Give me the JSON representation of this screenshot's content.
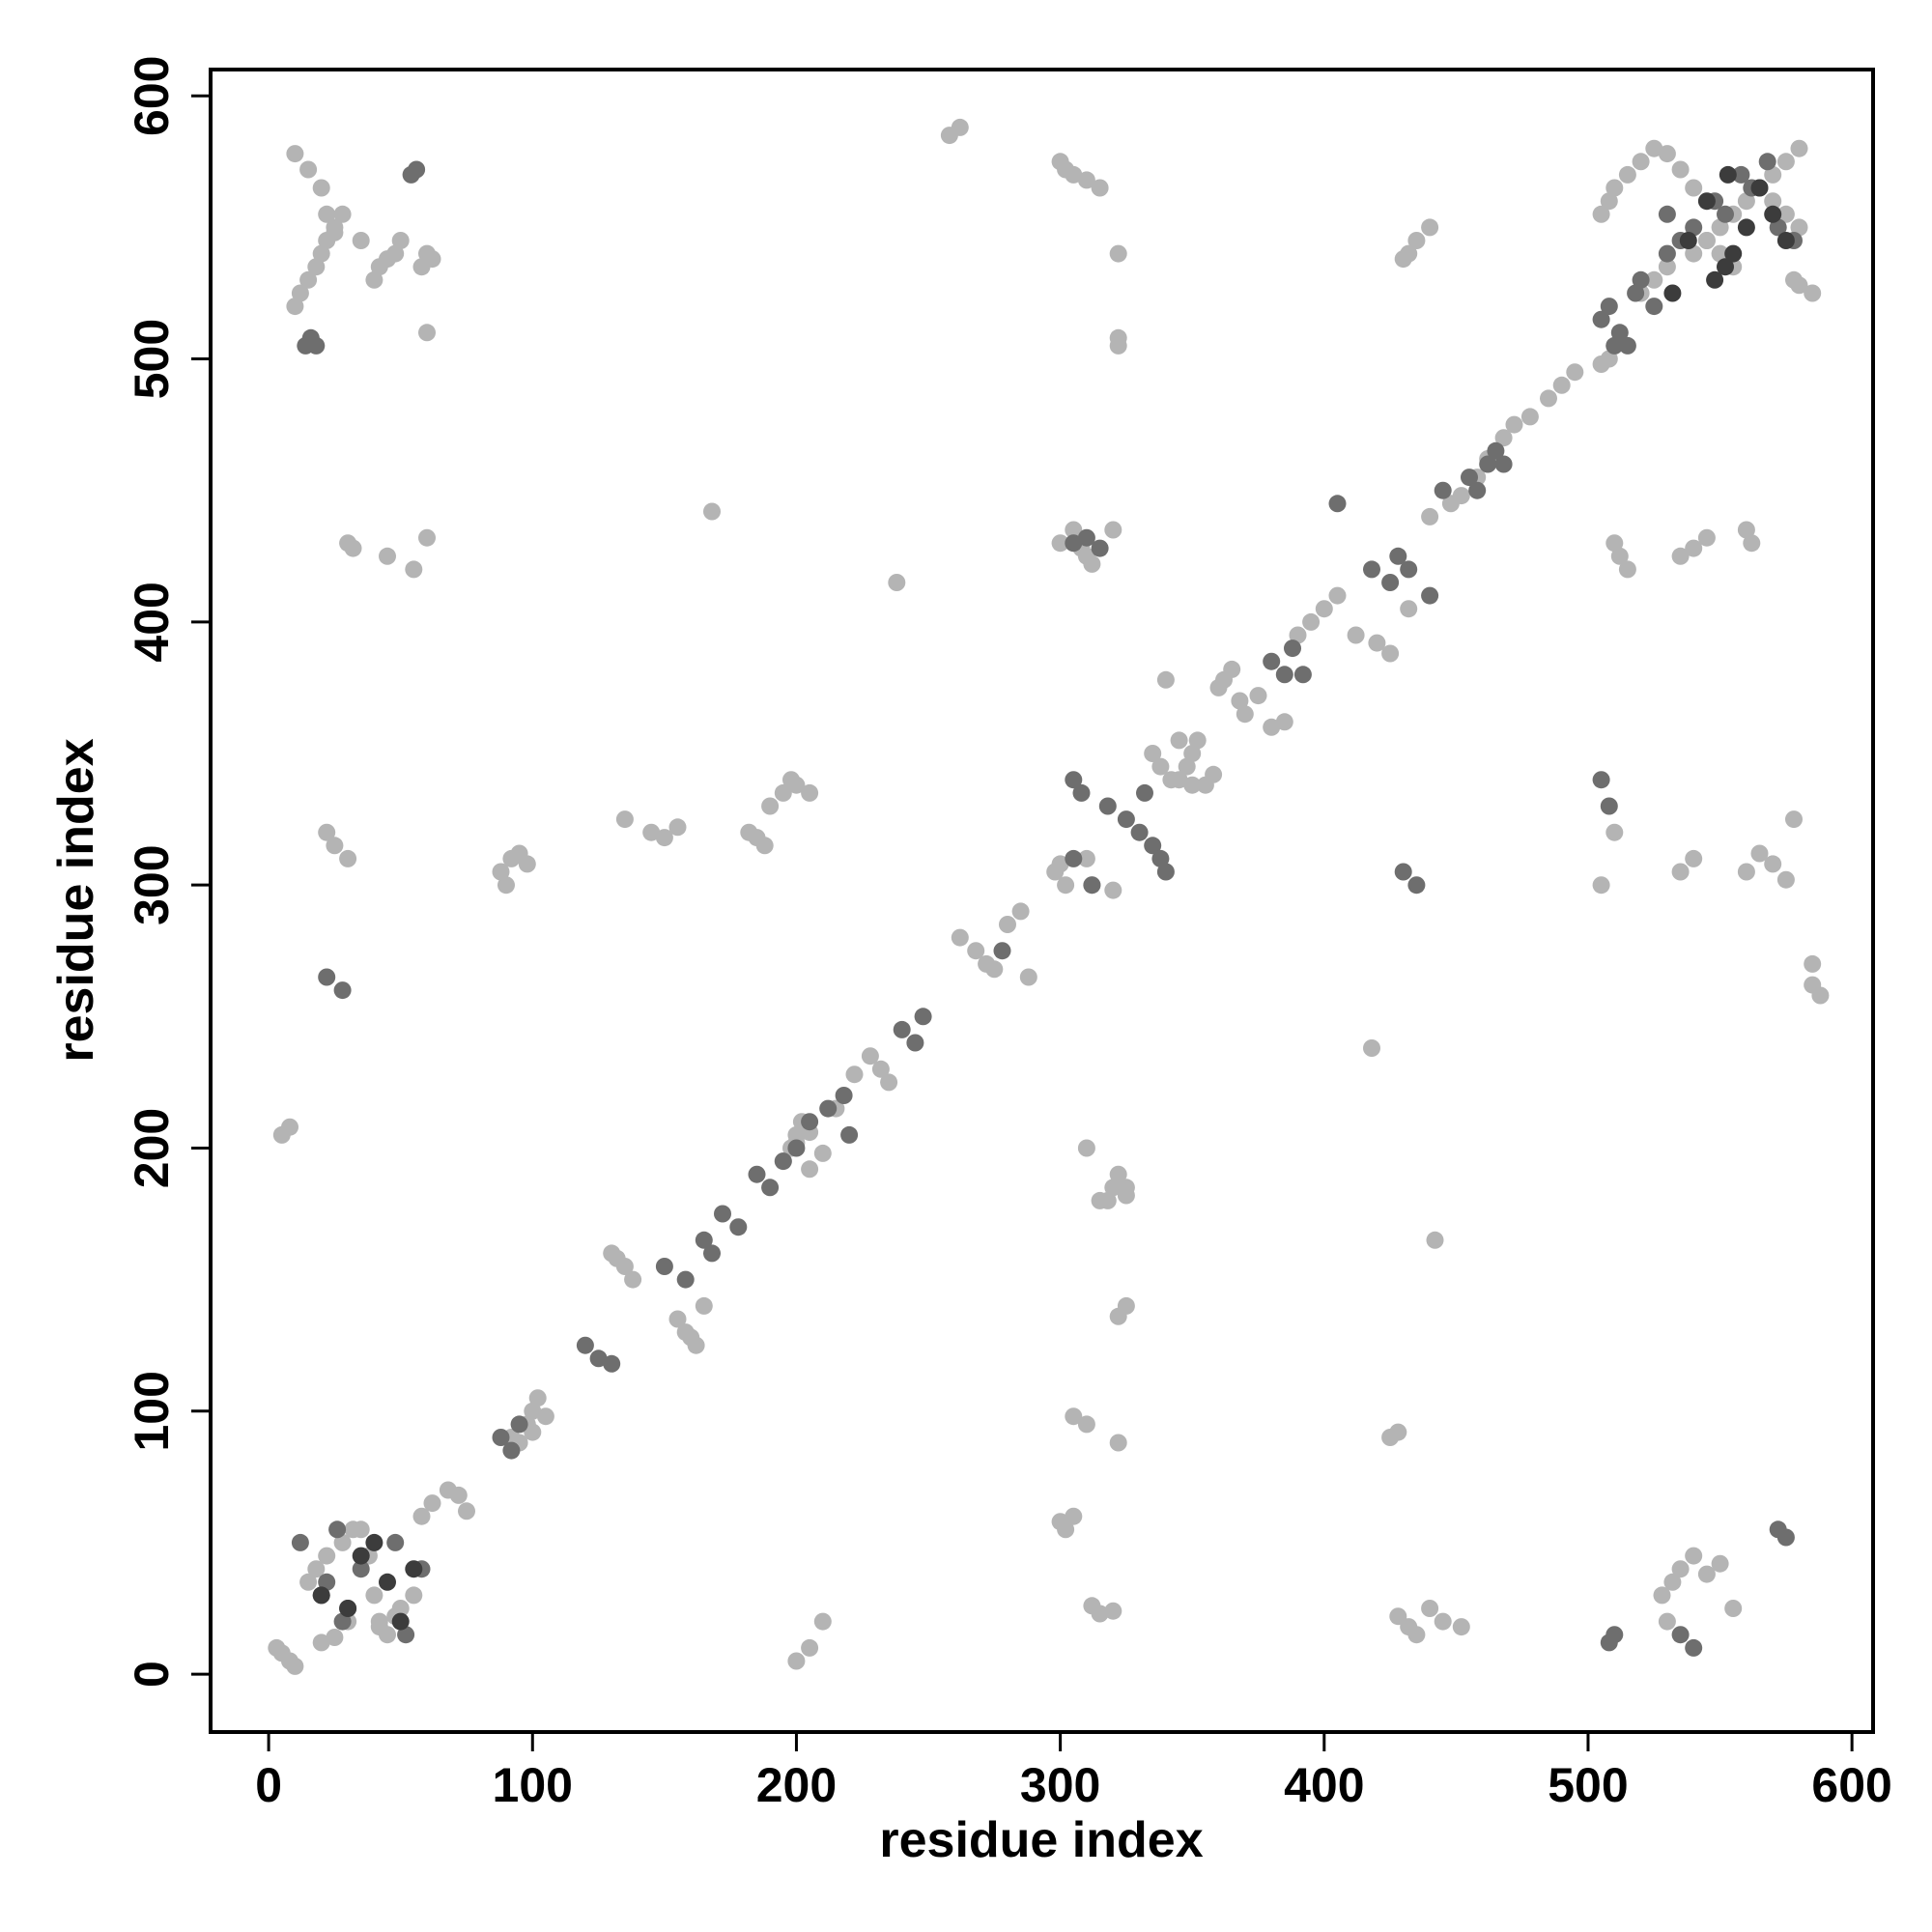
{
  "chart_data": {
    "type": "scatter",
    "title": "",
    "xlabel": "residue index",
    "ylabel": "residue index",
    "xlim": [
      -22,
      608
    ],
    "ylim": [
      -22,
      610
    ],
    "xticks": [
      0,
      100,
      200,
      300,
      400,
      500,
      600
    ],
    "yticks": [
      0,
      100,
      200,
      300,
      400,
      500,
      600
    ],
    "grid": false,
    "legend": "none",
    "colors": {
      "dark": "#3c3c3c",
      "mid": "#6e6e6e",
      "light": "#b4b4b4"
    },
    "series": [
      {
        "shade": "dark",
        "x": [
          30,
          40,
          45,
          55,
          20,
          35,
          50,
          545,
          555,
          560,
          565,
          570,
          575,
          548,
          552,
          532,
          538,
          553
        ],
        "y": [
          25,
          50,
          35,
          40,
          30,
          45,
          20,
          560,
          540,
          550,
          565,
          555,
          545,
          530,
          535,
          525,
          545,
          570
        ]
      },
      {
        "shade": "mid",
        "x": [
          12,
          26,
          48,
          58,
          28,
          30,
          22,
          20,
          35,
          52,
          14,
          18,
          16,
          54,
          56,
          88,
          92,
          95,
          120,
          125,
          130,
          150,
          158,
          165,
          168,
          172,
          178,
          185,
          190,
          195,
          200,
          205,
          212,
          218,
          220,
          240,
          245,
          248,
          278,
          305,
          308,
          318,
          325,
          330,
          335,
          338,
          340,
          305,
          312,
          332,
          418,
          425,
          428,
          432,
          440,
          405,
          455,
          458,
          462,
          465,
          445,
          468,
          380,
          385,
          388,
          392,
          508,
          512,
          515,
          520,
          525,
          530,
          535,
          540,
          548,
          552,
          558,
          562,
          568,
          572,
          578,
          505,
          510,
          518,
          530,
          305,
          310,
          315,
          430,
          435,
          508,
          510,
          28,
          22,
          535,
          540,
          572,
          575,
          505,
          508
        ],
        "y": [
          50,
          55,
          50,
          40,
          20,
          25,
          35,
          30,
          40,
          15,
          505,
          505,
          508,
          570,
          572,
          90,
          85,
          95,
          125,
          120,
          118,
          155,
          150,
          165,
          160,
          175,
          170,
          190,
          185,
          195,
          200,
          210,
          215,
          220,
          205,
          245,
          240,
          250,
          275,
          340,
          335,
          330,
          325,
          320,
          315,
          310,
          305,
          310,
          300,
          335,
          420,
          415,
          425,
          420,
          410,
          445,
          455,
          450,
          460,
          465,
          450,
          460,
          385,
          380,
          390,
          380,
          520,
          510,
          505,
          530,
          520,
          540,
          545,
          550,
          560,
          555,
          570,
          565,
          575,
          550,
          545,
          515,
          505,
          525,
          555,
          430,
          432,
          428,
          305,
          300,
          12,
          15,
          260,
          265,
          15,
          10,
          55,
          52,
          340,
          330
        ],
        "x2": [],
        "y2": []
      },
      {
        "shade": "light",
        "x": [
          3,
          5,
          8,
          10,
          20,
          25,
          15,
          18,
          35,
          38,
          40,
          42,
          45,
          50,
          55,
          22,
          28,
          32,
          30,
          42,
          48,
          58,
          62,
          68,
          72,
          75,
          100,
          102,
          98,
          92,
          95,
          100,
          105,
          130,
          132,
          135,
          138,
          155,
          158,
          160,
          162,
          165,
          195,
          198,
          200,
          202,
          205,
          210,
          215,
          222,
          228,
          232,
          235,
          262,
          268,
          272,
          275,
          280,
          285,
          288,
          298,
          300,
          302,
          310,
          312,
          320,
          345,
          348,
          350,
          352,
          355,
          358,
          360,
          362,
          365,
          368,
          370,
          375,
          380,
          385,
          390,
          395,
          400,
          405,
          412,
          420,
          425,
          432,
          440,
          448,
          452,
          458,
          462,
          468,
          472,
          478,
          485,
          490,
          495,
          505,
          508,
          510,
          520,
          525,
          530,
          540,
          545,
          550,
          555,
          560,
          565,
          570,
          575,
          580,
          510,
          512,
          515,
          535,
          540,
          545,
          560,
          562,
          300,
          305,
          308,
          310,
          312,
          320,
          305,
          310,
          322,
          425,
          428,
          430,
          432,
          435,
          440,
          505,
          508,
          510,
          515,
          520,
          525,
          530,
          535,
          540,
          570,
          575,
          580,
          545,
          550,
          555,
          578,
          580,
          585,
          300,
          302,
          305,
          310,
          315,
          322,
          322,
          10,
          12,
          15,
          18,
          20,
          22,
          25,
          28,
          40,
          42,
          45,
          48,
          50,
          58,
          60,
          62,
          10,
          15,
          20,
          22,
          25,
          35,
          60,
          30,
          32,
          45,
          55,
          60,
          22,
          25,
          30,
          335,
          338,
          342,
          350,
          345,
          182,
          185,
          188,
          190,
          195,
          198,
          200,
          205,
          210,
          528,
          532,
          535,
          540,
          545,
          550,
          555,
          530,
          535,
          505,
          510,
          540,
          560,
          565,
          570,
          575,
          578,
          585,
          300,
          302,
          305,
          312,
          315,
          320,
          325,
          322,
          315,
          325,
          310,
          428,
          432,
          435,
          440,
          445,
          452,
          318,
          320,
          325,
          322,
          205,
          200,
          238,
          258,
          262,
          168,
          442,
          418,
          585,
          588,
          5,
          8,
          200,
          205,
          340,
          322,
          95,
          98,
          135,
          145,
          150,
          155,
          88,
          90,
          92
        ],
        "y": [
          10,
          8,
          5,
          3,
          12,
          14,
          35,
          40,
          55,
          45,
          30,
          20,
          15,
          25,
          30,
          45,
          50,
          55,
          20,
          18,
          22,
          60,
          65,
          70,
          68,
          62,
          100,
          105,
          95,
          90,
          88,
          92,
          98,
          160,
          158,
          155,
          150,
          135,
          130,
          128,
          125,
          140,
          195,
          200,
          205,
          210,
          192,
          198,
          215,
          228,
          235,
          230,
          225,
          280,
          275,
          270,
          268,
          285,
          290,
          265,
          305,
          308,
          300,
          310,
          300,
          298,
          340,
          345,
          350,
          355,
          338,
          342,
          375,
          378,
          382,
          370,
          365,
          372,
          360,
          362,
          395,
          400,
          405,
          410,
          395,
          392,
          388,
          405,
          440,
          445,
          448,
          455,
          462,
          470,
          475,
          478,
          485,
          490,
          495,
          498,
          500,
          505,
          525,
          530,
          535,
          540,
          545,
          550,
          555,
          560,
          565,
          570,
          575,
          580,
          430,
          425,
          420,
          425,
          428,
          432,
          435,
          430,
          430,
          435,
          428,
          425,
          422,
          435,
          98,
          95,
          88,
          90,
          92,
          538,
          540,
          545,
          550,
          555,
          560,
          565,
          570,
          575,
          580,
          578,
          572,
          565,
          560,
          555,
          550,
          545,
          540,
          535,
          530,
          528,
          525,
          575,
          572,
          570,
          568,
          565,
          505,
          508,
          520,
          525,
          530,
          535,
          540,
          545,
          548,
          555,
          530,
          535,
          538,
          540,
          545,
          535,
          540,
          538,
          578,
          572,
          565,
          555,
          550,
          545,
          510,
          430,
          428,
          425,
          420,
          432,
          320,
          315,
          310,
          350,
          345,
          340,
          338,
          355,
          320,
          318,
          315,
          330,
          335,
          340,
          338,
          335,
          20,
          30,
          35,
          40,
          45,
          38,
          42,
          25,
          20,
          305,
          300,
          320,
          310,
          305,
          312,
          308,
          302,
          325,
          270,
          58,
          55,
          60,
          26,
          23,
          24,
          140,
          136,
          180,
          185,
          200,
          22,
          18,
          15,
          25,
          20,
          18,
          180,
          185,
          182,
          190,
          10,
          5,
          415,
          585,
          588,
          442,
          165,
          238,
          262,
          258,
          205,
          208,
          202,
          206,
          378,
          540,
          312,
          308,
          325,
          320,
          318,
          322,
          305,
          300,
          310
        ]
      }
    ]
  }
}
